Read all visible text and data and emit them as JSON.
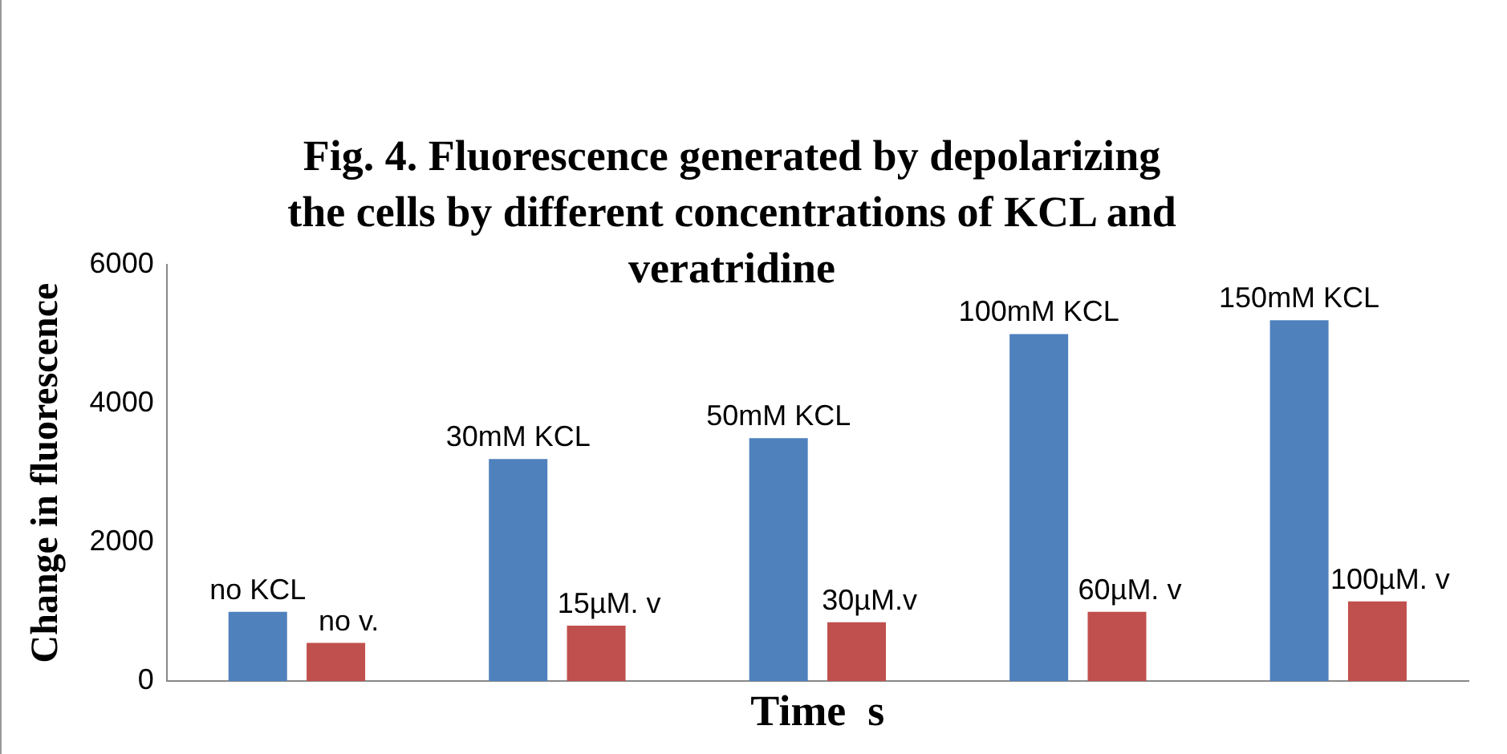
{
  "chart_data": {
    "type": "bar",
    "title": "Fig. 4. Fluorescence generated by depolarizing the cells by different concentrations of KCL and veratridine",
    "xlabel": "Time  s",
    "ylabel": "Change in fluorescence",
    "categories": [
      null,
      null,
      null,
      null,
      null
    ],
    "series": [
      {
        "color": "#4f81bd",
        "values": [
          1000,
          3200,
          3500,
          5000,
          5200
        ]
      },
      {
        "color": "#c0504d",
        "values": [
          550,
          800,
          850,
          1000,
          1150
        ]
      }
    ],
    "annotations": [
      {
        "text": "no KCL",
        "y": 1000
      },
      {
        "text": "30mM KCL",
        "y": 3200
      },
      {
        "text": "50mM KCL",
        "y": 3500
      },
      {
        "text": "100mM KCL",
        "y": 5000
      },
      {
        "text": "150mM KCL",
        "y": 5200
      },
      {
        "text": "no v.",
        "y": 550
      },
      {
        "text": "15µM. v",
        "y": 800
      },
      {
        "text": "30µM.v",
        "y": 850
      },
      {
        "text": "60µM. v",
        "y": 1000
      },
      {
        "text": "100µM. v",
        "y": 1150
      }
    ],
    "ylim": [
      0,
      6000
    ],
    "yticks": [
      0,
      2000,
      4000,
      6000
    ],
    "grid": false,
    "legend": false,
    "tick_labels": "y"
  }
}
